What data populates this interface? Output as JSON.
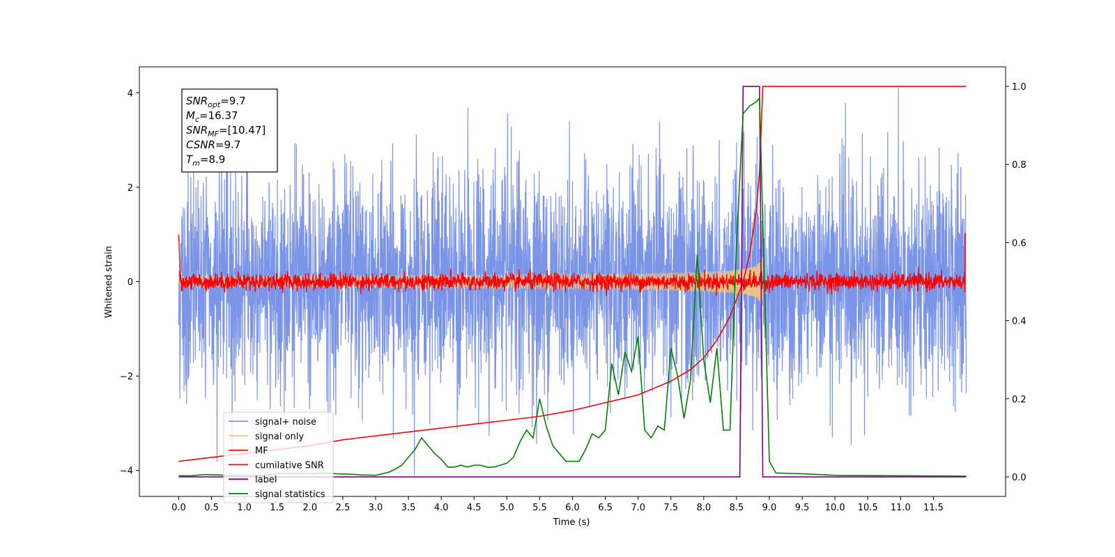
{
  "chart_data": {
    "type": "line",
    "title": "",
    "xlabel": "Time (s)",
    "ylabel": "Whitened strain",
    "xlim": [
      -0.6,
      12.6
    ],
    "ylim": [
      -4.55,
      4.55
    ],
    "y2lim": [
      -0.05,
      1.05
    ],
    "x_ticks": [
      0.0,
      0.5,
      1.0,
      1.5,
      2.0,
      2.5,
      3.0,
      3.5,
      4.0,
      4.5,
      5.0,
      5.5,
      6.0,
      6.5,
      7.0,
      7.5,
      8.0,
      8.5,
      9.0,
      9.5,
      10.0,
      10.5,
      11.0,
      11.5
    ],
    "x_tick_labels": [
      "0.0",
      "0.5",
      "1.0",
      "1.5",
      "2.0",
      "2.5",
      "3.0",
      "3.5",
      "4.0",
      "4.5",
      "5.0",
      "5.5",
      "6.0",
      "6.5",
      "7.0",
      "7.5",
      "8.0",
      "8.5",
      "9.0",
      "9.5",
      "10.0",
      "10.5",
      "11.0",
      "11.5"
    ],
    "y_ticks": [
      -4,
      -2,
      0,
      2,
      4
    ],
    "y_tick_labels": [
      "−4",
      "−2",
      "0",
      "2",
      "4"
    ],
    "y2_ticks": [
      0.0,
      0.2,
      0.4,
      0.6,
      0.8,
      1.0
    ],
    "y2_tick_labels": [
      "0.0",
      "0.2",
      "0.4",
      "0.6",
      "0.8",
      "1.0"
    ],
    "grid": false,
    "legend_placement": "lower-left",
    "annotation": {
      "lines": [
        {
          "sym": "SNR",
          "sub": "opt",
          "val": "=9.7"
        },
        {
          "sym": "M",
          "sub": "c",
          "val": "=16.37"
        },
        {
          "sym": "SNR",
          "sub": "MF",
          "val": "=[10.47]"
        },
        {
          "sym": "CSNR",
          "sub": "",
          "val": "=9.7"
        },
        {
          "sym": "T",
          "sub": "m",
          "val": "=8.9"
        }
      ]
    },
    "series": [
      {
        "name": "signal+ noise",
        "color": "#7a94e8",
        "axis": "left",
        "style": "noise",
        "x_range": [
          0,
          12
        ],
        "envelope": 2.6,
        "peak": 4.1
      },
      {
        "name": "signal only",
        "color": "#f5c77a",
        "axis": "left",
        "style": "chirp",
        "x_range": [
          0,
          8.9
        ],
        "peak_time": 8.9,
        "peak_amplitude": 1.0
      },
      {
        "name": "MF",
        "color": "#ff0000",
        "axis": "left",
        "style": "mf_noise",
        "x_range": [
          0,
          12
        ],
        "amplitude": 0.15
      },
      {
        "name": "cumilative SNR",
        "color": "#ff0000",
        "axis": "right",
        "x": [
          0.0,
          0.5,
          1.0,
          1.5,
          2.0,
          2.5,
          3.0,
          3.5,
          4.0,
          4.5,
          5.0,
          5.5,
          6.0,
          6.5,
          7.0,
          7.5,
          7.8,
          8.0,
          8.2,
          8.4,
          8.6,
          8.7,
          8.8,
          8.85,
          8.9,
          9.0,
          12.0
        ],
        "y": [
          0.04,
          0.05,
          0.06,
          0.07,
          0.08,
          0.095,
          0.105,
          0.115,
          0.125,
          0.135,
          0.145,
          0.155,
          0.17,
          0.19,
          0.21,
          0.245,
          0.275,
          0.305,
          0.35,
          0.41,
          0.5,
          0.57,
          0.68,
          0.78,
          1.0,
          1.0,
          1.0
        ]
      },
      {
        "name": "label",
        "color": "#800080",
        "axis": "right",
        "x": [
          0.0,
          8.55,
          8.6,
          8.85,
          8.9,
          12.0
        ],
        "y": [
          0.0,
          0.0,
          1.0,
          1.0,
          0.0,
          0.0
        ]
      },
      {
        "name": "signal statistics",
        "color": "#008000",
        "axis": "right",
        "x": [
          0.0,
          0.2,
          0.4,
          0.6,
          0.8,
          1.0,
          1.2,
          1.4,
          1.6,
          1.8,
          2.0,
          2.2,
          2.4,
          2.6,
          2.8,
          3.0,
          3.2,
          3.3,
          3.4,
          3.5,
          3.6,
          3.7,
          3.8,
          3.9,
          4.0,
          4.1,
          4.2,
          4.3,
          4.4,
          4.5,
          4.6,
          4.7,
          4.8,
          4.9,
          5.0,
          5.1,
          5.2,
          5.3,
          5.4,
          5.5,
          5.6,
          5.7,
          5.8,
          5.9,
          6.0,
          6.1,
          6.2,
          6.3,
          6.4,
          6.5,
          6.6,
          6.7,
          6.8,
          6.9,
          7.0,
          7.1,
          7.2,
          7.3,
          7.4,
          7.5,
          7.6,
          7.7,
          7.8,
          7.9,
          8.0,
          8.1,
          8.2,
          8.3,
          8.4,
          8.5,
          8.6,
          8.7,
          8.8,
          8.85,
          8.9,
          9.0,
          9.1,
          9.5,
          10.0,
          12.0
        ],
        "y": [
          0.003,
          0.003,
          0.006,
          0.005,
          0.004,
          0.004,
          0.003,
          0.006,
          0.009,
          0.009,
          0.008,
          0.01,
          0.008,
          0.007,
          0.005,
          0.004,
          0.012,
          0.02,
          0.03,
          0.05,
          0.07,
          0.1,
          0.08,
          0.06,
          0.045,
          0.025,
          0.025,
          0.03,
          0.025,
          0.03,
          0.03,
          0.025,
          0.025,
          0.03,
          0.035,
          0.05,
          0.09,
          0.12,
          0.1,
          0.2,
          0.13,
          0.08,
          0.06,
          0.04,
          0.04,
          0.04,
          0.07,
          0.11,
          0.1,
          0.12,
          0.29,
          0.21,
          0.32,
          0.27,
          0.36,
          0.12,
          0.1,
          0.13,
          0.12,
          0.33,
          0.26,
          0.15,
          0.25,
          0.57,
          0.3,
          0.19,
          0.33,
          0.12,
          0.12,
          0.6,
          0.93,
          0.95,
          0.96,
          0.97,
          0.65,
          0.04,
          0.01,
          0.008,
          0.004,
          0.002
        ]
      }
    ]
  }
}
